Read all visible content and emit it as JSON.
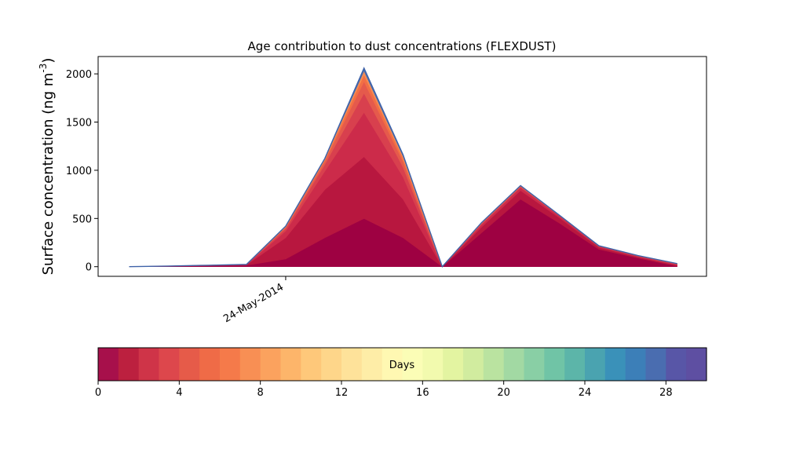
{
  "chart_data": {
    "type": "area",
    "stacked": true,
    "title": "Age contribution to dust concentrations (FLEXDUST)",
    "xlabel": "",
    "ylabel": "Surface concentration (ng m",
    "ylabel_superscript": "-3",
    "ylabel_close": ")",
    "x": [
      "2014-05-20",
      "2014-05-21",
      "2014-05-22",
      "2014-05-23",
      "2014-05-24",
      "2014-05-25",
      "2014-05-26",
      "2014-05-27",
      "2014-05-28",
      "2014-05-29",
      "2014-05-30",
      "2014-05-31",
      "2014-06-01",
      "2014-06-02",
      "2014-06-03"
    ],
    "xlim": [
      "2014-05-19T05:00",
      "2014-06-03T18:00"
    ],
    "xtick_labels": [
      {
        "date": "2014-05-24",
        "label": "24-May-2014"
      }
    ],
    "ylim": [
      -100,
      2180
    ],
    "yticks": [
      0,
      500,
      1000,
      1500,
      2000
    ],
    "series": [
      {
        "values": [
          0,
          3,
          8,
          15,
          80,
          300,
          500,
          300,
          0,
          350,
          700,
          450,
          180,
          90,
          5
        ],
        "color": "#9e0142"
      },
      {
        "values": [
          0,
          2,
          4,
          5,
          220,
          500,
          640,
          400,
          0,
          60,
          90,
          55,
          20,
          10,
          10
        ],
        "color": "#b8173f"
      },
      {
        "values": [
          0,
          1,
          2,
          3,
          70,
          190,
          460,
          230,
          0,
          25,
          30,
          18,
          10,
          8,
          8
        ],
        "color": "#cc2b4a"
      },
      {
        "values": [
          0,
          1,
          1,
          1,
          25,
          70,
          200,
          100,
          0,
          10,
          10,
          5,
          3,
          3,
          4
        ],
        "color": "#d8404e"
      },
      {
        "values": [
          0,
          0,
          0,
          0,
          12,
          35,
          120,
          60,
          0,
          5,
          5,
          2,
          2,
          2,
          2
        ],
        "color": "#e55a4c"
      },
      {
        "values": [
          0,
          0,
          0,
          0,
          6,
          15,
          70,
          35,
          0,
          3,
          3,
          1,
          1,
          1,
          1
        ],
        "color": "#f26f45"
      },
      {
        "values": [
          0,
          0,
          0,
          0,
          4,
          8,
          40,
          20,
          0,
          2,
          2,
          1,
          1,
          1,
          1
        ],
        "color": "#f88d52"
      },
      {
        "values": [
          0,
          0,
          0,
          0,
          3,
          5,
          30,
          15,
          0,
          1,
          1,
          0,
          0,
          0,
          1
        ],
        "color": "#4a6fb0"
      }
    ],
    "colorbar": {
      "label": "Days",
      "min": 0,
      "max": 30,
      "ticks": [
        0,
        4,
        8,
        12,
        16,
        20,
        24,
        28
      ],
      "colors": [
        "#a7104b",
        "#bc203f",
        "#cf3448",
        "#dd474c",
        "#e65b49",
        "#ef6b47",
        "#f57a4a",
        "#f88f54",
        "#fba25e",
        "#fdb56a",
        "#fec87a",
        "#fed68a",
        "#fee29a",
        "#feeda7",
        "#fff8b2",
        "#fbfdb6",
        "#f2faae",
        "#e3f4a1",
        "#d1ec9f",
        "#bae3a0",
        "#a2d9a3",
        "#89cfa5",
        "#70c4a6",
        "#5cb5a9",
        "#4aa3b0",
        "#3a91b9",
        "#3c7fb8",
        "#4a6db0",
        "#5856a7",
        "#5e4fa2"
      ]
    }
  }
}
